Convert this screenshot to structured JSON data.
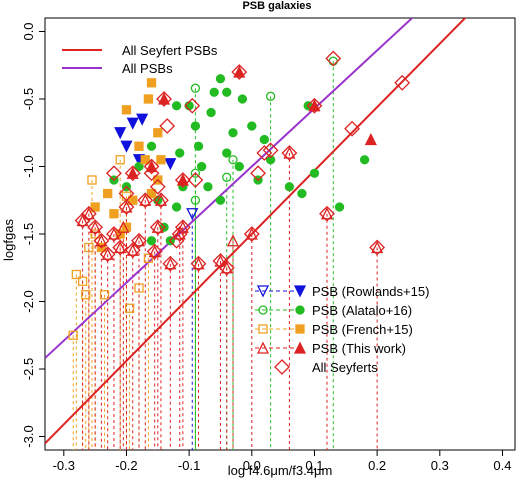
{
  "chart_data": {
    "type": "scatter",
    "title": "PSB galaxies",
    "xlabel": "log f4.6μm/f3.4μm",
    "ylabel": "logfgas",
    "xlim": [
      -0.33,
      0.42
    ],
    "ylim": [
      -3.1,
      0.1
    ],
    "x_ticks": [
      -0.3,
      -0.2,
      -0.1,
      0.0,
      0.1,
      0.2,
      0.3,
      0.4
    ],
    "y_ticks": [
      -3.0,
      -2.5,
      -2.0,
      -1.5,
      -1.0,
      -0.5,
      0.0
    ],
    "x_tick_labels": [
      "-0.3",
      "-0.2",
      "-0.1",
      "0.0",
      "0.1",
      "0.2",
      "0.3",
      "0.4"
    ],
    "y_tick_labels": [
      "-3.0",
      "-2.5",
      "-2.0",
      "-1.5",
      "-1.0",
      "-0.5",
      "0.0"
    ],
    "grid": false,
    "fits": [
      {
        "name": "All Seyfert PSBs",
        "color": "#dd2222",
        "slope": 4.7,
        "intercept": -1.5
      },
      {
        "name": "All PSBs",
        "color": "#9933cc",
        "slope": 4.3,
        "intercept": -1.0
      }
    ],
    "legend_lines_position": "top-left",
    "legend_points_position": "bottom-right",
    "series": [
      {
        "name": "PSB (Rowlands+15)",
        "color": "#1111dd",
        "marker": "triangle-down",
        "detected": [
          [
            -0.21,
            -0.75
          ],
          [
            -0.2,
            -0.85
          ],
          [
            -0.19,
            -0.68
          ],
          [
            -0.18,
            -0.95
          ],
          [
            -0.175,
            -0.65
          ],
          [
            -0.13,
            -0.98
          ]
        ],
        "upper_limits": [
          [
            -0.095,
            -1.35
          ]
        ]
      },
      {
        "name": "PSB (Alatalo+16)",
        "color": "#22bb22",
        "marker": "circle",
        "detected": [
          [
            -0.22,
            -1.1
          ],
          [
            -0.2,
            -1.15
          ],
          [
            -0.18,
            -1.0
          ],
          [
            -0.16,
            -0.85
          ],
          [
            -0.15,
            -1.25
          ],
          [
            -0.14,
            -1.45
          ],
          [
            -0.13,
            -1.55
          ],
          [
            -0.12,
            -1.3
          ],
          [
            -0.115,
            -0.9
          ],
          [
            -0.11,
            -1.15
          ],
          [
            -0.1,
            -0.55
          ],
          [
            -0.09,
            -0.7
          ],
          [
            -0.085,
            -0.85
          ],
          [
            -0.08,
            -1.0
          ],
          [
            -0.07,
            -1.15
          ],
          [
            -0.065,
            -0.6
          ],
          [
            -0.06,
            -0.45
          ],
          [
            -0.05,
            -1.25
          ],
          [
            -0.04,
            -0.9
          ],
          [
            -0.03,
            -0.75
          ],
          [
            -0.02,
            -1.0
          ],
          [
            -0.015,
            -0.5
          ],
          [
            0.0,
            -0.7
          ],
          [
            0.01,
            -1.1
          ],
          [
            0.02,
            -0.8
          ],
          [
            0.03,
            -0.95
          ],
          [
            0.06,
            -1.15
          ],
          [
            0.08,
            -1.2
          ],
          [
            0.09,
            -0.55
          ],
          [
            0.1,
            -1.05
          ],
          [
            0.14,
            -1.3
          ],
          [
            0.18,
            -0.95
          ],
          [
            -0.05,
            -0.35
          ],
          [
            -0.04,
            -0.45
          ],
          [
            -0.12,
            -0.55
          ],
          [
            -0.16,
            -1.55
          ]
        ],
        "upper_limits": [
          [
            -0.09,
            -0.42
          ],
          [
            -0.09,
            -1.05
          ],
          [
            -0.09,
            -1.25
          ],
          [
            -0.04,
            -1.08
          ],
          [
            -0.03,
            -0.95
          ],
          [
            0.03,
            -0.48
          ],
          [
            0.13,
            -0.22
          ]
        ]
      },
      {
        "name": "PSB (French+15)",
        "color": "#f0a020",
        "marker": "square",
        "detected": [
          [
            -0.25,
            -1.3
          ],
          [
            -0.24,
            -1.6
          ],
          [
            -0.23,
            -1.2
          ],
          [
            -0.22,
            -1.35
          ],
          [
            -0.21,
            -1.5
          ],
          [
            -0.2,
            -1.45
          ],
          [
            -0.19,
            -1.25
          ],
          [
            -0.18,
            -0.85
          ],
          [
            -0.17,
            -0.95
          ],
          [
            -0.16,
            -1.2
          ],
          [
            -0.16,
            -0.38
          ],
          [
            -0.165,
            -0.5
          ],
          [
            -0.15,
            -0.75
          ],
          [
            -0.15,
            -1.1
          ],
          [
            -0.145,
            -0.95
          ],
          [
            -0.2,
            -0.58
          ]
        ],
        "upper_limits": [
          [
            -0.285,
            -2.25
          ],
          [
            -0.28,
            -1.8
          ],
          [
            -0.27,
            -1.85
          ],
          [
            -0.265,
            -1.95
          ],
          [
            -0.26,
            -1.6
          ],
          [
            -0.255,
            -1.1
          ],
          [
            -0.25,
            -1.5
          ],
          [
            -0.235,
            -1.95
          ],
          [
            -0.21,
            -0.95
          ],
          [
            -0.2,
            -1.22
          ],
          [
            -0.195,
            -2.05
          ],
          [
            -0.18,
            -1.9
          ],
          [
            -0.165,
            -1.68
          ]
        ]
      },
      {
        "name": "PSB (This work)",
        "color": "#dd2222",
        "marker": "triangle-up",
        "detected": [
          [
            -0.19,
            -1.05
          ],
          [
            -0.16,
            -1.0
          ],
          [
            -0.14,
            -0.5
          ],
          [
            -0.11,
            -1.1
          ],
          [
            -0.02,
            -0.3
          ],
          [
            0.1,
            -0.55
          ],
          [
            0.19,
            -0.8
          ]
        ],
        "upper_limits": [
          [
            -0.27,
            -1.4
          ],
          [
            -0.26,
            -1.35
          ],
          [
            -0.25,
            -1.45
          ],
          [
            -0.24,
            -1.55
          ],
          [
            -0.23,
            -1.65
          ],
          [
            -0.22,
            -1.5
          ],
          [
            -0.21,
            -1.6
          ],
          [
            -0.205,
            -1.45
          ],
          [
            -0.2,
            -1.3
          ],
          [
            -0.19,
            -1.62
          ],
          [
            -0.18,
            -1.55
          ],
          [
            -0.17,
            -1.25
          ],
          [
            -0.155,
            -1.63
          ],
          [
            -0.15,
            -1.45
          ],
          [
            -0.145,
            -1.25
          ],
          [
            -0.13,
            -1.72
          ],
          [
            -0.115,
            -1.5
          ],
          [
            -0.11,
            -1.45
          ],
          [
            -0.085,
            -1.72
          ],
          [
            -0.05,
            -1.7
          ],
          [
            -0.04,
            -1.75
          ],
          [
            -0.03,
            -1.55
          ],
          [
            0.0,
            -1.5
          ],
          [
            0.06,
            -0.9
          ],
          [
            0.12,
            -1.35
          ],
          [
            0.2,
            -1.6
          ]
        ]
      }
    ],
    "all_seyferts": {
      "name": "All Seyferts",
      "color": "#dd2222",
      "marker": "diamond-open",
      "points": [
        [
          -0.27,
          -1.4
        ],
        [
          -0.26,
          -1.35
        ],
        [
          -0.25,
          -1.45
        ],
        [
          -0.24,
          -1.55
        ],
        [
          -0.23,
          -1.65
        ],
        [
          -0.22,
          -1.5
        ],
        [
          -0.21,
          -1.6
        ],
        [
          -0.2,
          -1.3
        ],
        [
          -0.19,
          -1.62
        ],
        [
          -0.18,
          -1.55
        ],
        [
          -0.17,
          -1.25
        ],
        [
          -0.155,
          -1.63
        ],
        [
          -0.15,
          -1.45
        ],
        [
          -0.145,
          -1.25
        ],
        [
          -0.13,
          -1.72
        ],
        [
          -0.115,
          -1.5
        ],
        [
          -0.11,
          -1.45
        ],
        [
          -0.085,
          -1.72
        ],
        [
          -0.05,
          -1.7
        ],
        [
          -0.04,
          -1.75
        ],
        [
          0.0,
          -1.5
        ],
        [
          0.12,
          -1.35
        ],
        [
          0.2,
          -1.6
        ],
        [
          -0.19,
          -1.05
        ],
        [
          -0.16,
          -1.0
        ],
        [
          -0.14,
          -0.5
        ],
        [
          -0.135,
          -0.7
        ],
        [
          -0.11,
          -1.1
        ],
        [
          -0.02,
          -0.3
        ],
        [
          0.01,
          -1.05
        ],
        [
          0.02,
          -0.9
        ],
        [
          0.03,
          -0.88
        ],
        [
          0.06,
          -0.9
        ],
        [
          0.1,
          -0.55
        ],
        [
          0.13,
          -0.2
        ],
        [
          0.16,
          -0.72
        ],
        [
          0.24,
          -0.38
        ],
        [
          -0.16,
          -1.05
        ],
        [
          -0.15,
          -1.15
        ],
        [
          -0.12,
          -1.55
        ],
        [
          -0.095,
          -0.55
        ],
        [
          -0.09,
          -1.1
        ],
        [
          -0.2,
          -1.2
        ],
        [
          -0.22,
          -1.05
        ]
      ]
    }
  }
}
